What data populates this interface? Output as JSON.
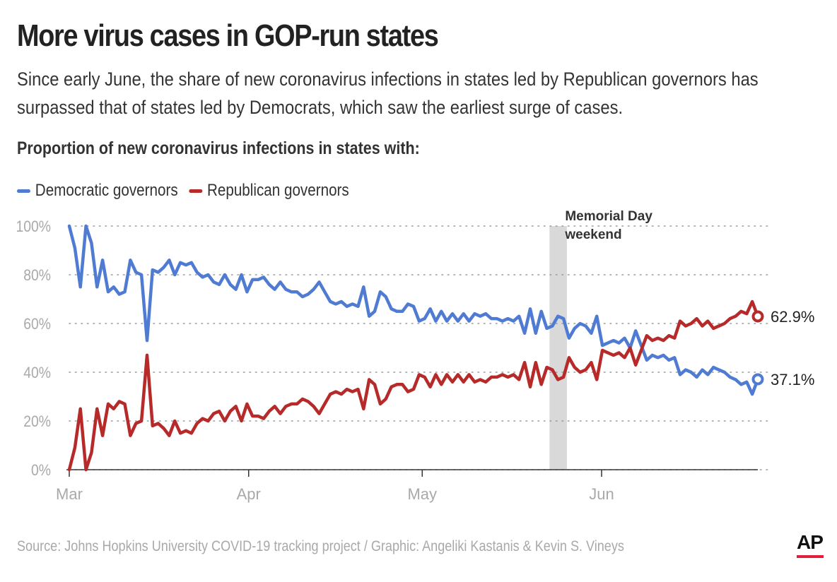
{
  "title": "More virus cases in GOP-run states",
  "subtitle": "Since early June, the share of new coronavirus infections in states led by Republican governors has surpassed that of states led by Democrats, which saw the earliest surge of cases.",
  "chart_heading": "Proportion of new coronavirus infections in states with:",
  "source": "Source: Johns Hopkins University COVID-19 tracking project / Graphic: Angeliki Kastanis & Kevin S. Vineys",
  "logo_text": "AP",
  "chart_data": {
    "type": "line",
    "x_start": "2020-03-01",
    "x_end": "2020-06-28",
    "x_ticks": [
      {
        "label": "Mar",
        "date": "2020-03-01"
      },
      {
        "label": "Apr",
        "date": "2020-04-01"
      },
      {
        "label": "May",
        "date": "2020-05-01"
      },
      {
        "label": "Jun",
        "date": "2020-06-01"
      }
    ],
    "y_ticks": [
      {
        "label": "100%",
        "value": 100
      },
      {
        "label": "80%",
        "value": 80
      },
      {
        "label": "60%",
        "value": 60
      },
      {
        "label": "40%",
        "value": 40
      },
      {
        "label": "20%",
        "value": 20
      },
      {
        "label": "0%",
        "value": 0
      }
    ],
    "ylim": [
      0,
      100
    ],
    "grid": "dotted horizontal",
    "legend_position": "top-left",
    "annotation": {
      "label_line1": "Memorial Day",
      "label_line2": "weekend",
      "start": "2020-05-23",
      "end": "2020-05-25"
    },
    "series": [
      {
        "name": "Democratic governors",
        "color": "#4f7bd2",
        "end_label": "37.1%",
        "values": [
          100,
          91,
          75,
          100,
          93,
          75,
          86,
          73,
          75,
          72,
          73,
          86,
          81,
          80,
          53,
          82,
          81,
          83,
          86,
          80,
          85,
          84,
          85,
          81,
          79,
          80,
          77,
          76,
          80,
          76,
          74,
          80,
          73,
          78,
          78,
          79,
          76,
          74,
          77,
          74,
          73,
          73,
          71,
          72,
          74,
          77,
          73,
          69,
          68,
          69,
          67,
          68,
          67,
          75,
          63,
          65,
          73,
          71,
          66,
          65,
          65,
          68,
          67,
          61,
          62,
          66,
          61,
          65,
          61,
          64,
          61,
          64,
          61,
          64,
          63,
          64,
          62,
          62,
          61,
          62,
          61,
          63,
          56,
          66,
          56,
          65,
          58,
          59,
          63,
          62,
          54,
          58,
          60,
          59,
          56,
          63,
          51,
          52,
          53,
          52,
          54,
          50,
          57,
          51,
          45,
          47,
          46,
          47,
          45,
          46,
          39,
          41,
          40,
          38,
          41,
          39,
          42,
          41,
          40,
          38,
          37,
          35,
          36,
          31,
          37.1
        ]
      },
      {
        "name": "Republican governors",
        "color": "#b72a2a",
        "end_label": "62.9%",
        "values": [
          0,
          9,
          25,
          0,
          7,
          25,
          14,
          27,
          25,
          28,
          27,
          14,
          19,
          20,
          47,
          18,
          19,
          17,
          14,
          20,
          15,
          16,
          15,
          19,
          21,
          20,
          23,
          24,
          20,
          24,
          26,
          20,
          27,
          22,
          22,
          21,
          24,
          26,
          23,
          26,
          27,
          27,
          29,
          28,
          26,
          23,
          27,
          31,
          32,
          31,
          33,
          32,
          33,
          25,
          37,
          35,
          27,
          29,
          34,
          35,
          35,
          32,
          33,
          39,
          38,
          34,
          39,
          35,
          39,
          36,
          39,
          36,
          39,
          36,
          37,
          36,
          38,
          38,
          39,
          38,
          39,
          37,
          44,
          34,
          44,
          35,
          42,
          41,
          37,
          38,
          46,
          42,
          40,
          41,
          44,
          37,
          49,
          48,
          47,
          48,
          46,
          50,
          43,
          49,
          55,
          53,
          54,
          53,
          55,
          54,
          61,
          59,
          60,
          62,
          59,
          61,
          58,
          59,
          60,
          62,
          63,
          65,
          64,
          69,
          62.9
        ]
      }
    ]
  }
}
